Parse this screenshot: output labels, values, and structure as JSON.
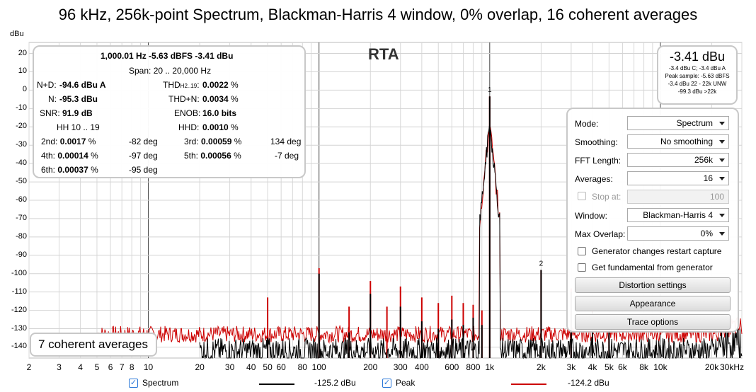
{
  "title": "96 kHz, 256k-point Spectrum, Blackman-Harris 4 window, 0% overlap, 16 coherent averages",
  "chart_data": {
    "type": "line",
    "title": "96 kHz, 256k-point Spectrum, Blackman-Harris 4 window, 0% overlap, 16 coherent averages",
    "ylabel": "dBu",
    "xscale": "log",
    "xlim": [
      2,
      30000
    ],
    "ylim": [
      -146,
      26
    ],
    "yticks": [
      "20",
      "10",
      "0",
      "-10",
      "-20",
      "-30",
      "-40",
      "-50",
      "-60",
      "-70",
      "-80",
      "-90",
      "-100",
      "-110",
      "-120",
      "-130",
      "-140"
    ],
    "xticks": [
      {
        "v": 2,
        "t": "2"
      },
      {
        "v": 3,
        "t": "3"
      },
      {
        "v": 4,
        "t": "4"
      },
      {
        "v": 5,
        "t": "5"
      },
      {
        "v": 6,
        "t": "6"
      },
      {
        "v": 7,
        "t": "7"
      },
      {
        "v": 8,
        "t": "8"
      },
      {
        "v": 10,
        "t": "10"
      },
      {
        "v": 20,
        "t": "20"
      },
      {
        "v": 30,
        "t": "30"
      },
      {
        "v": 40,
        "t": "40"
      },
      {
        "v": 50,
        "t": "50"
      },
      {
        "v": 60,
        "t": "60"
      },
      {
        "v": 80,
        "t": "80"
      },
      {
        "v": 100,
        "t": "100"
      },
      {
        "v": 200,
        "t": "200"
      },
      {
        "v": 300,
        "t": "300"
      },
      {
        "v": 400,
        "t": "400"
      },
      {
        "v": 600,
        "t": "600"
      },
      {
        "v": 800,
        "t": "800"
      },
      {
        "v": 1000,
        "t": "1k"
      },
      {
        "v": 2000,
        "t": "2k"
      },
      {
        "v": 3000,
        "t": "3k"
      },
      {
        "v": 4000,
        "t": "4k"
      },
      {
        "v": 5000,
        "t": "5k"
      },
      {
        "v": 6000,
        "t": "6k"
      },
      {
        "v": 8000,
        "t": "8k"
      },
      {
        "v": 10000,
        "t": "10k"
      },
      {
        "v": 20000,
        "t": "20k"
      },
      {
        "v": 30000,
        "t": "30kHz"
      }
    ],
    "markers": [
      {
        "label": "1",
        "x": 1000,
        "y": -3.4
      },
      {
        "label": "2",
        "x": 2000,
        "y": -98
      }
    ],
    "series": [
      {
        "name": "Spectrum",
        "color": "#000000",
        "floor": -142,
        "peaks": [
          {
            "x": 1000,
            "y": -3.4
          },
          {
            "x": 2000,
            "y": -98
          },
          {
            "x": 3000,
            "y": -110
          },
          {
            "x": 4000,
            "y": -121
          },
          {
            "x": 5000,
            "y": -127
          },
          {
            "x": 50,
            "y": -135
          },
          {
            "x": 100,
            "y": -100
          },
          {
            "x": 150,
            "y": -132
          },
          {
            "x": 200,
            "y": -111
          },
          {
            "x": 300,
            "y": -118
          },
          {
            "x": 400,
            "y": -126
          },
          {
            "x": 500,
            "y": -130
          },
          {
            "x": 600,
            "y": -125
          },
          {
            "x": 700,
            "y": -128
          },
          {
            "x": 800,
            "y": -124
          },
          {
            "x": 900,
            "y": -128
          }
        ]
      },
      {
        "name": "Peak",
        "color": "#cc0000",
        "floor": -133,
        "peaks": [
          {
            "x": 1000,
            "y": -3.4
          },
          {
            "x": 2000,
            "y": -98
          },
          {
            "x": 3000,
            "y": -108
          },
          {
            "x": 4000,
            "y": -117
          },
          {
            "x": 5000,
            "y": -122
          },
          {
            "x": 50,
            "y": -113
          },
          {
            "x": 100,
            "y": -97
          },
          {
            "x": 200,
            "y": -104
          },
          {
            "x": 300,
            "y": -107
          },
          {
            "x": 400,
            "y": -113
          },
          {
            "x": 500,
            "y": -116
          },
          {
            "x": 600,
            "y": -112
          },
          {
            "x": 700,
            "y": -116
          },
          {
            "x": 800,
            "y": -117
          },
          {
            "x": 900,
            "y": -120
          },
          {
            "x": 150,
            "y": -118
          },
          {
            "x": 250,
            "y": -118
          }
        ]
      }
    ]
  },
  "plot_title": "RTA",
  "stats": {
    "fundamental": "1,000.01 Hz  -5.63 dBFS  -3.41 dBu",
    "span": "Span: 20 .. 20,000 Hz",
    "nd_label": "N+D:",
    "nd_value": "-94.6 dBu A",
    "n_label": "N:",
    "n_value": "-95.3 dBu",
    "snr_label": "SNR:",
    "snr_value": "91.9 dB",
    "hh_label": "HH 10 .. 19",
    "thd_label": "THD",
    "thd_sub": "H2..19",
    "thd_value": "0.0022",
    "thd_unit": "%",
    "thdn_label": "THD+N:",
    "thdn_value": "0.0034",
    "thdn_unit": "%",
    "enob_label": "ENOB:",
    "enob_value": "16.0 bits",
    "hhd_label": "HHD:",
    "hhd_value": "0.0010",
    "hhd_unit": "%",
    "harmonics": [
      {
        "label": "2nd:",
        "value": "0.0017",
        "unit": "%",
        "phase": "-82 deg"
      },
      {
        "label": "3rd:",
        "value": "0.00059",
        "unit": "%",
        "phase": "134 deg"
      },
      {
        "label": "4th:",
        "value": "0.00014",
        "unit": "%",
        "phase": "-97 deg"
      },
      {
        "label": "5th:",
        "value": "0.00056",
        "unit": "%",
        "phase": "-7 deg"
      },
      {
        "label": "6th:",
        "value": "0.00037",
        "unit": "%",
        "phase": "-95 deg"
      }
    ]
  },
  "readout": {
    "value": "-3.41 dBu",
    "line1": "-3.4 dBu C; -3.4 dBu A",
    "line2": "Peak sample: -5.63 dBFS",
    "line3": "-3.4 dBu 22 - 22k UNW",
    "line4": "-99.3 dBu >22k"
  },
  "controls": {
    "mode_label": "Mode:",
    "mode_value": "Spectrum",
    "smoothing_label": "Smoothing:",
    "smoothing_value": "No smoothing",
    "fft_label": "FFT Length:",
    "fft_value": "256k",
    "averages_label": "Averages:",
    "averages_value": "16",
    "stop_label": "Stop at:",
    "stop_value": "100",
    "window_label": "Window:",
    "window_value": "Blackman-Harris 4",
    "overlap_label": "Max Overlap:",
    "overlap_value": "0%",
    "gen_restart_label": "Generator changes restart capture",
    "fund_gen_label": "Get fundamental from generator",
    "distortion_btn": "Distortion settings",
    "appearance_btn": "Appearance",
    "trace_btn": "Trace options"
  },
  "avg_status": "7 coherent averages",
  "legend": {
    "spectrum_label": "Spectrum",
    "spectrum_value": "-125.2 dBu",
    "spectrum_color": "#000000",
    "peak_label": "Peak",
    "peak_value": "-124.2 dBu",
    "peak_color": "#cc0000"
  }
}
